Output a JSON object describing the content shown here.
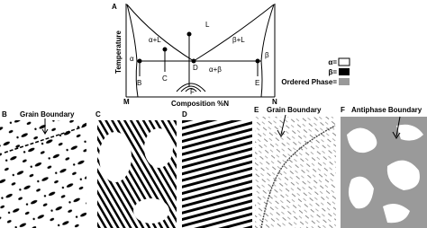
{
  "panel_a": {
    "label": "A",
    "y_axis": "Temperature",
    "x_axis": "Composition %N",
    "left_end": "M",
    "right_end": "N",
    "regions": [
      "L",
      "α+L",
      "β+L",
      "α",
      "β",
      "α+β"
    ],
    "points": [
      "B",
      "C",
      "D",
      "E",
      "F"
    ],
    "legend": [
      "α=",
      "β=",
      "Ordered Phase="
    ]
  },
  "panels": [
    {
      "label": "B",
      "caption": "Grain Boundary"
    },
    {
      "label": "C"
    },
    {
      "label": "D"
    },
    {
      "label": "E",
      "caption": "Grain Boundary"
    },
    {
      "label": "F",
      "caption": "Antiphase Boundary"
    }
  ]
}
